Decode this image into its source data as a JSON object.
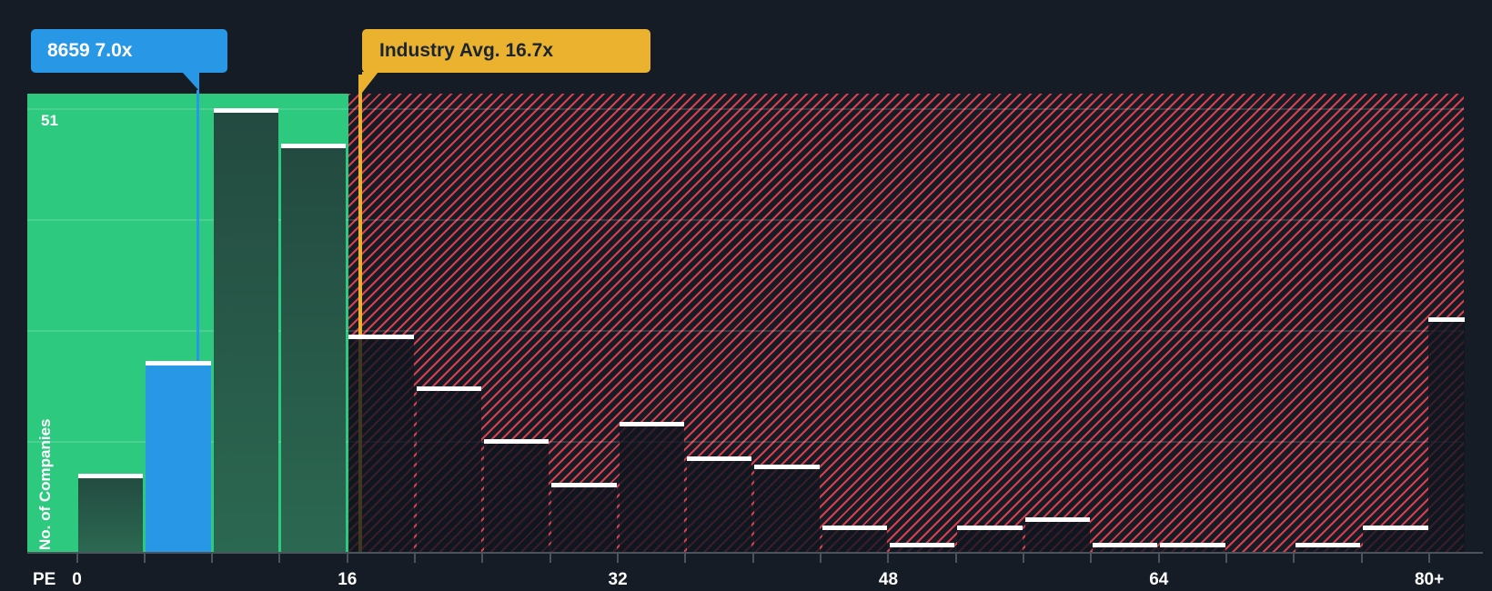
{
  "y_axis": {
    "title": "No. of Companies",
    "max_gridline_label": "51"
  },
  "x_axis": {
    "title": "PE",
    "tick_labels": [
      "0",
      "16",
      "32",
      "48",
      "64",
      "80+"
    ]
  },
  "callouts": {
    "company": {
      "text": "8659 7.0x",
      "color": "#2897e5",
      "text_color": "#ffffff",
      "pe_value": 7.0
    },
    "industry": {
      "text": "Industry Avg. 16.7x",
      "color": "#eab22f",
      "text_color": "#1b2531",
      "pe_value": 16.7
    }
  },
  "chart_data": {
    "type": "bar",
    "title": "Number of companies by PE ratio (histogram)",
    "xlabel": "PE",
    "ylabel": "No. of Companies",
    "bin_width": 4,
    "categories": [
      "0-4",
      "4-8",
      "8-12",
      "12-16",
      "16-20",
      "20-24",
      "24-28",
      "28-32",
      "32-36",
      "36-40",
      "40-44",
      "44-48",
      "48-52",
      "52-56",
      "56-60",
      "60-64",
      "64-68",
      "68-72",
      "72-76",
      "76-80",
      "80+"
    ],
    "values": [
      9,
      22,
      51,
      47,
      25,
      19,
      13,
      8,
      15,
      11,
      10,
      3,
      1,
      3,
      4,
      1,
      1,
      0,
      1,
      3,
      27
    ],
    "ylim": [
      0,
      51
    ],
    "gridline_values": [
      12.75,
      25.5,
      38.25,
      51
    ],
    "x_tick_values": [
      0,
      16,
      32,
      48,
      64,
      80
    ],
    "company_marker": {
      "label": "8659 7.0x",
      "pe": 7.0,
      "bin_index": 1
    },
    "industry_average": {
      "label": "Industry Avg. 16.7x",
      "pe": 16.7
    },
    "regions": [
      {
        "name": "below-industry-average",
        "from_pe": 0,
        "to_pe": 16,
        "style": "solid-green"
      },
      {
        "name": "above-industry-average",
        "from_pe": 16,
        "to_pe": 84,
        "style": "red-hatched"
      }
    ],
    "legend": null,
    "grid": true
  },
  "colors": {
    "background": "#151c26",
    "green_region": "#2dc97e",
    "bar_green_top": "#234a40",
    "bar_green_bottom": "#2b6851",
    "bar_highlight_blue": "#2897e5",
    "bar_dark": "rgba(14,20,30,0.78)",
    "hatch_red": "#f64352",
    "industry_yellow": "#eab22f",
    "axis_gray": "#4d535b",
    "gridline": "rgba(255,255,255,0.14)",
    "text_white": "#ffffff"
  }
}
